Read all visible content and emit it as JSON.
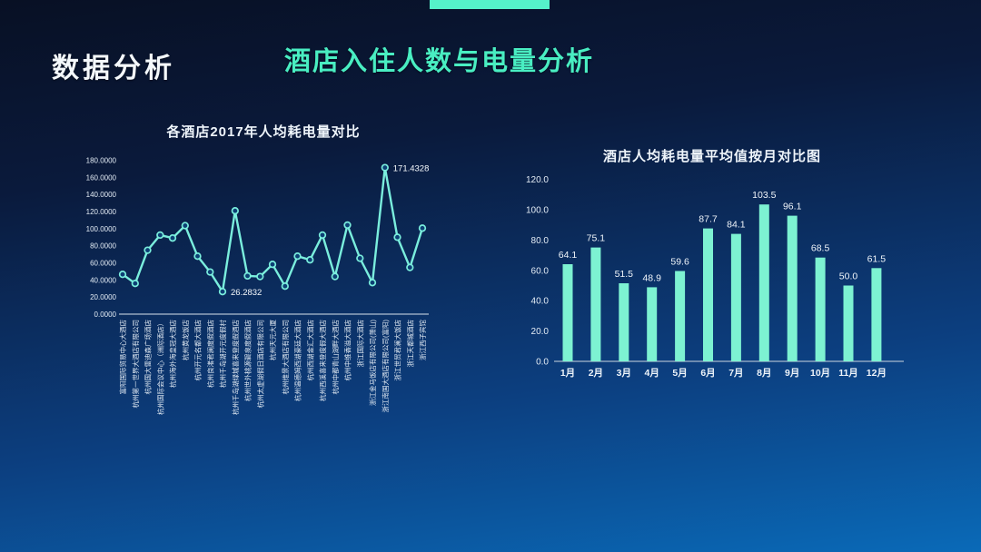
{
  "slide": {
    "section_title": "数据分析",
    "main_title": "酒店入住人数与电量分析",
    "accent_color": "#55f2ca",
    "background_top": "#081024",
    "background_bottom": "#0a6ab8"
  },
  "chart_data": [
    {
      "type": "line",
      "title": "各酒店2017年人均耗电量对比",
      "xlabel": "",
      "ylabel": "",
      "ylim": [
        0,
        180
      ],
      "grid": false,
      "legend": "none",
      "line_color": "#7aeedd",
      "marker_fill": "#0d3f74",
      "ytick_labels": [
        "180.0000",
        "160.0000",
        "140.0000",
        "120.0000",
        "100.0000",
        "80.0000",
        "60.0000",
        "40.0000",
        "20.0000",
        "0.0000"
      ],
      "categories": [
        "富阳国际贸易中心大酒店",
        "杭州第一世界大酒店有限公司",
        "杭州国大雷迪森广场酒店",
        "杭州国际会议中心（洲际酒店）",
        "杭州海外海皇冠大酒店",
        "杭州黄龙饭店",
        "杭州开元名都大酒店",
        "杭州良渚君澜度假酒店",
        "杭州千岛湖开元度假村",
        "杭州千岛湖绿城喜来登度假酒店",
        "杭州世外桃源碧泉度假酒店",
        "杭州太虚湖假日酒店有限公司",
        "杭州天元大厦",
        "杭州维景大酒店有限公司",
        "杭州温德姆西湖豪廷大酒店",
        "杭州西湖金汇大酒店",
        "杭州西溪喜来登度假大酒店",
        "杭州中都青山湖畔大酒店",
        "杭州中维香溢大酒店",
        "浙江国际大酒店",
        "浙江金马饭店有限公司(萧山)",
        "浙江南国大酒店有限公司(富阳)",
        "浙江世贸君澜大饭店",
        "浙江天都城酒店",
        "浙江西子宾馆"
      ],
      "values": [
        46.5,
        35.9,
        74.8,
        92.5,
        89.0,
        103.5,
        67.7,
        49.3,
        26.2832,
        120.8,
        44.7,
        44.0,
        58.2,
        32.7,
        67.7,
        63.5,
        92.5,
        44.0,
        104.2,
        65.3,
        36.9,
        171.4328,
        90.0,
        54.6,
        100.6
      ],
      "annotations": [
        {
          "index": 8,
          "label": "26.2832"
        },
        {
          "index": 21,
          "label": "171.4328"
        }
      ]
    },
    {
      "type": "bar",
      "title": "酒店人均耗电量平均值按月对比图",
      "xlabel": "",
      "ylabel": "",
      "ylim": [
        0,
        120
      ],
      "grid": false,
      "legend": "none",
      "bar_color": "#7df2d2",
      "ytick_labels": [
        "120.0",
        "100.0",
        "80.0",
        "60.0",
        "40.0",
        "20.0",
        "0.0"
      ],
      "categories": [
        "1月",
        "2月",
        "3月",
        "4月",
        "5月",
        "6月",
        "7月",
        "8月",
        "9月",
        "10月",
        "11月",
        "12月"
      ],
      "values": [
        64.1,
        75.1,
        51.5,
        48.9,
        59.6,
        87.7,
        84.1,
        103.5,
        96.1,
        68.5,
        50.0,
        61.5
      ]
    }
  ]
}
